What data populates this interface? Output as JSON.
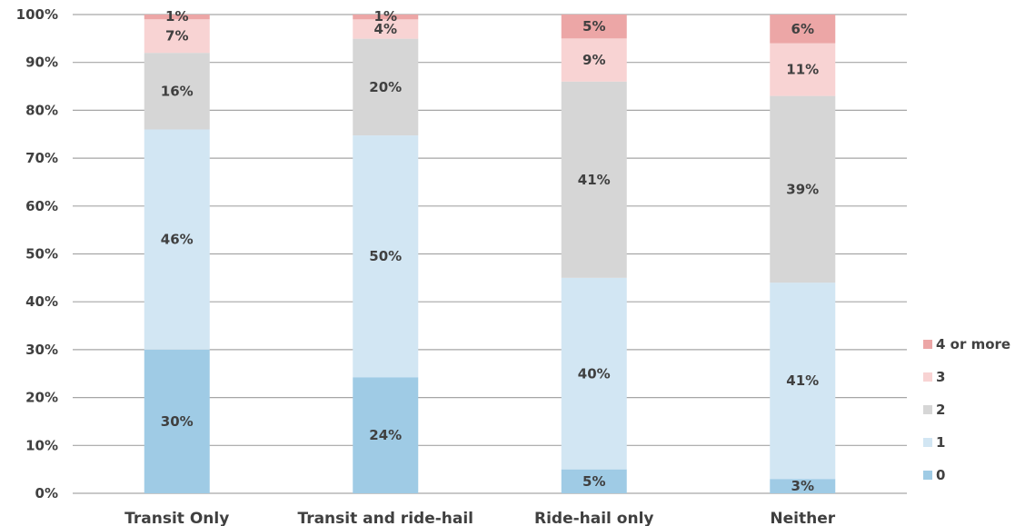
{
  "chart_data": {
    "type": "bar",
    "stacked": true,
    "percent_stacked": true,
    "title": "",
    "xlabel": "",
    "ylabel": "",
    "ylim": [
      0,
      100
    ],
    "yticks": [
      "0%",
      "10%",
      "20%",
      "30%",
      "40%",
      "50%",
      "60%",
      "70%",
      "80%",
      "90%",
      "100%"
    ],
    "grid": true,
    "legend_position": "right",
    "categories": [
      "Transit Only",
      "Transit and ride-hail",
      "Ride-hail only",
      "Neither"
    ],
    "series": [
      {
        "name": "0",
        "color": "#9fcbe5",
        "values": [
          30,
          24,
          5,
          3
        ],
        "labels": [
          "30%",
          "24%",
          "5%",
          "3%"
        ]
      },
      {
        "name": "1",
        "color": "#d2e6f3",
        "values": [
          46,
          50,
          40,
          41
        ],
        "labels": [
          "46%",
          "50%",
          "40%",
          "41%"
        ]
      },
      {
        "name": "2",
        "color": "#d6d6d6",
        "values": [
          16,
          20,
          41,
          39
        ],
        "labels": [
          "16%",
          "20%",
          "41%",
          "39%"
        ]
      },
      {
        "name": "3",
        "color": "#f8d3d3",
        "values": [
          7,
          4,
          9,
          11
        ],
        "labels": [
          "7%",
          "4%",
          "9%",
          "11%"
        ]
      },
      {
        "name": "4 or more",
        "color": "#eca6a6",
        "values": [
          1,
          1,
          5,
          6
        ],
        "labels": [
          "1%",
          "1%",
          "5%",
          "6%"
        ]
      }
    ]
  }
}
